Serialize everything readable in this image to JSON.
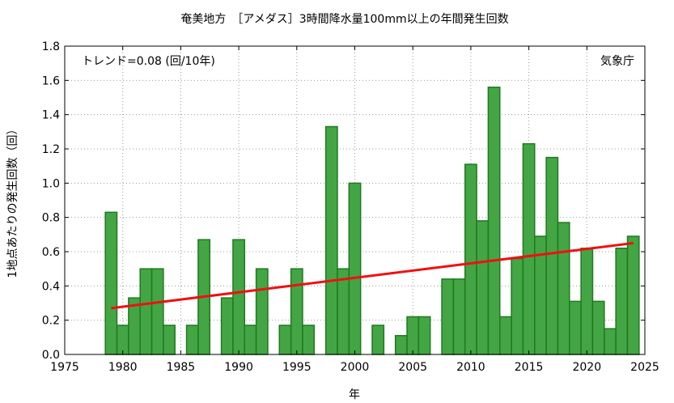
{
  "chart_data": {
    "type": "bar",
    "title": "奄美地方　［アメダス］3時間降水量100mm以上の年間発生回数",
    "xlabel": "年",
    "ylabel": "1地点あたりの発生回数（回）",
    "trend_label": "トレンド=0.08 (回/10年)",
    "agency_label": "気象庁",
    "xlim": [
      1975,
      2025
    ],
    "ylim": [
      0.0,
      1.8
    ],
    "x_ticks": [
      "1975",
      "1980",
      "1985",
      "1990",
      "1995",
      "2000",
      "2005",
      "2010",
      "2015",
      "2020",
      "2025"
    ],
    "y_ticks": [
      "0.0",
      "0.2",
      "0.4",
      "0.6",
      "0.8",
      "1.0",
      "1.2",
      "1.4",
      "1.6",
      "1.8"
    ],
    "grid": true,
    "bar_color": "#44a544",
    "bar_edge_color": "#1f7a1f",
    "trend_color": "#ee1111",
    "x": [
      1979,
      1980,
      1981,
      1982,
      1983,
      1984,
      1985,
      1986,
      1987,
      1988,
      1989,
      1990,
      1991,
      1992,
      1993,
      1994,
      1995,
      1996,
      1997,
      1998,
      1999,
      2000,
      2001,
      2002,
      2003,
      2004,
      2005,
      2006,
      2007,
      2008,
      2009,
      2010,
      2011,
      2012,
      2013,
      2014,
      2015,
      2016,
      2017,
      2018,
      2019,
      2020,
      2021,
      2022,
      2023,
      2024
    ],
    "values": [
      0.83,
      0.17,
      0.33,
      0.5,
      0.5,
      0.17,
      0.0,
      0.17,
      0.67,
      0.0,
      0.33,
      0.67,
      0.17,
      0.5,
      0.0,
      0.17,
      0.5,
      0.17,
      0.0,
      1.33,
      0.5,
      1.0,
      0.0,
      0.17,
      0.0,
      0.11,
      0.22,
      0.22,
      0.0,
      0.44,
      0.44,
      1.11,
      0.78,
      1.56,
      0.22,
      0.56,
      1.23,
      0.69,
      1.15,
      0.77,
      0.31,
      0.62,
      0.31,
      0.15,
      0.62,
      0.69
    ],
    "trend": {
      "x": [
        1979,
        2024
      ],
      "y": [
        0.27,
        0.65
      ]
    }
  }
}
